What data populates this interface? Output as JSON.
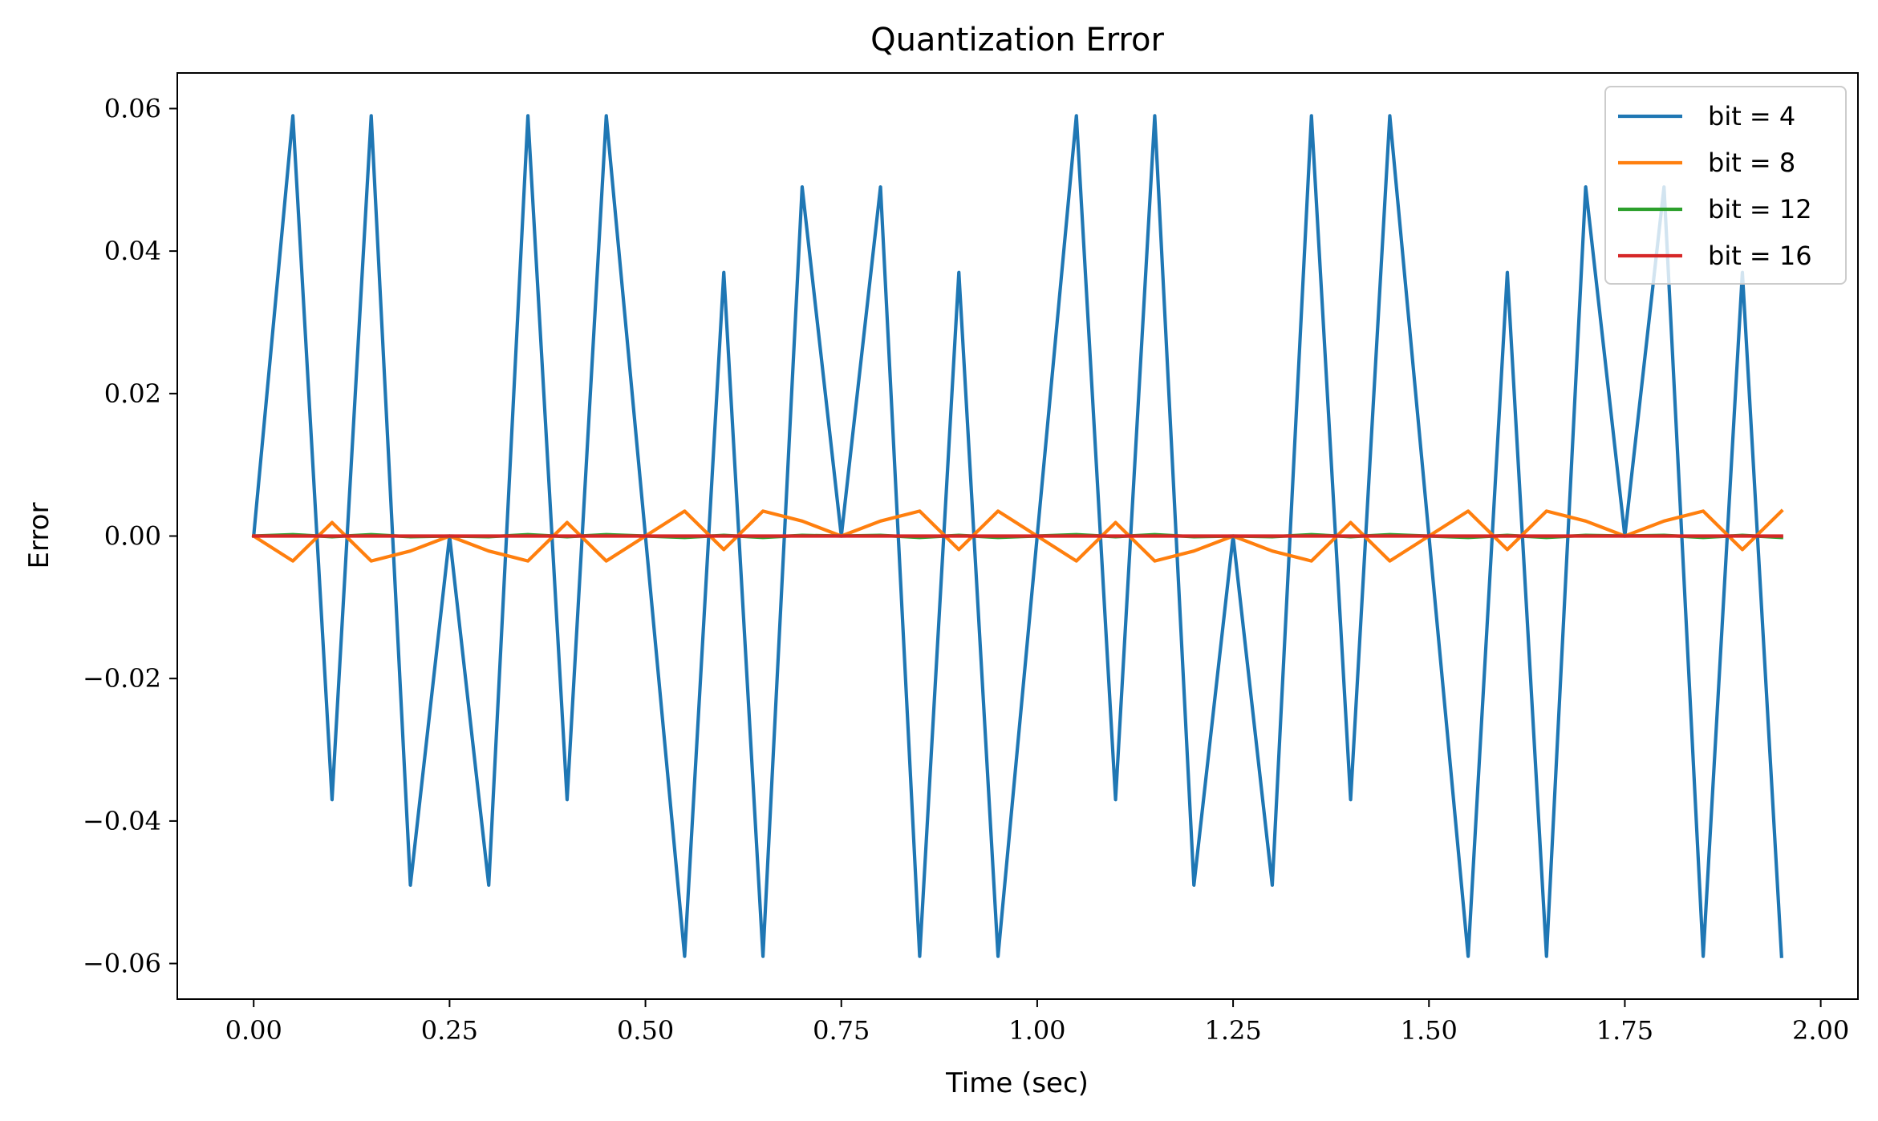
{
  "chart_data": {
    "type": "line",
    "title": "Quantization Error",
    "xlabel": "Time (sec)",
    "ylabel": "Error",
    "xlim": [
      -0.0975,
      2.0475
    ],
    "ylim": [
      -0.065,
      0.065
    ],
    "xticks": [
      0.0,
      0.25,
      0.5,
      0.75,
      1.0,
      1.25,
      1.5,
      1.75,
      2.0
    ],
    "xtick_labels": [
      "0.00",
      "0.25",
      "0.50",
      "0.75",
      "1.00",
      "1.25",
      "1.50",
      "1.75",
      "2.00"
    ],
    "yticks": [
      0.06,
      0.04,
      0.02,
      0.0,
      -0.02,
      -0.04,
      -0.06
    ],
    "ytick_labels": [
      "0.06",
      "0.04",
      "0.02",
      "0.00",
      "−0.02",
      "−0.04",
      "−0.06"
    ],
    "grid": false,
    "legend_position": "top-right",
    "x": [
      0.0,
      0.05,
      0.1,
      0.15,
      0.2,
      0.25,
      0.3,
      0.35,
      0.4,
      0.45,
      0.5,
      0.55,
      0.6,
      0.65,
      0.7,
      0.75,
      0.8,
      0.85,
      0.9,
      0.95,
      1.0,
      1.05,
      1.1,
      1.15,
      1.2,
      1.25,
      1.3,
      1.35,
      1.4,
      1.45,
      1.5,
      1.55,
      1.6,
      1.65,
      1.7,
      1.75,
      1.8,
      1.85,
      1.9,
      1.95
    ],
    "series": [
      {
        "name": "bit = 4",
        "color": "#1f77b4",
        "values": [
          0.0,
          0.059,
          -0.037,
          0.059,
          -0.049,
          0.0,
          -0.049,
          0.059,
          -0.037,
          0.059,
          0.0,
          -0.059,
          0.037,
          -0.059,
          0.049,
          0.0,
          0.049,
          -0.059,
          0.037,
          -0.059,
          0.0,
          0.059,
          -0.037,
          0.059,
          -0.049,
          0.0,
          -0.049,
          0.059,
          -0.037,
          0.059,
          0.0,
          -0.059,
          0.037,
          -0.059,
          0.049,
          0.0,
          0.049,
          -0.059,
          0.037,
          -0.059
        ]
      },
      {
        "name": "bit = 8",
        "color": "#ff7f0e",
        "values": [
          0.0,
          -0.0035,
          0.0019,
          -0.0035,
          -0.0021,
          0.0,
          -0.0021,
          -0.0035,
          0.0019,
          -0.0035,
          0.0,
          0.0035,
          -0.0019,
          0.0035,
          0.0021,
          0.0,
          0.0021,
          0.0035,
          -0.0019,
          0.0035,
          0.0,
          -0.0035,
          0.0019,
          -0.0035,
          -0.0021,
          0.0,
          -0.0021,
          -0.0035,
          0.0019,
          -0.0035,
          0.0,
          0.0035,
          -0.0019,
          0.0035,
          0.0021,
          0.0,
          0.0021,
          0.0035,
          -0.0019,
          0.0035
        ]
      },
      {
        "name": "bit = 12",
        "color": "#2ca02c",
        "values": [
          0.0,
          0.0002,
          -0.0001,
          0.0002,
          -0.0001,
          0.0,
          -0.0001,
          0.0002,
          -0.0001,
          0.0002,
          0.0,
          -0.0002,
          0.0001,
          -0.0002,
          0.0001,
          0.0,
          0.0001,
          -0.0002,
          0.0001,
          -0.0002,
          0.0,
          0.0002,
          -0.0001,
          0.0002,
          -0.0001,
          0.0,
          -0.0001,
          0.0002,
          -0.0001,
          0.0002,
          0.0,
          -0.0002,
          0.0001,
          -0.0002,
          0.0001,
          0.0,
          0.0001,
          -0.0002,
          0.0001,
          -0.0002
        ]
      },
      {
        "name": "bit = 16",
        "color": "#d62728",
        "values": [
          0.0,
          0.0,
          0.0,
          0.0,
          0.0,
          0.0,
          0.0,
          0.0,
          0.0,
          0.0,
          0.0,
          0.0,
          0.0,
          0.0,
          0.0,
          0.0,
          0.0,
          0.0,
          0.0,
          0.0,
          0.0,
          0.0,
          0.0,
          0.0,
          0.0,
          0.0,
          0.0,
          0.0,
          0.0,
          0.0,
          0.0,
          0.0,
          0.0,
          0.0,
          0.0,
          0.0,
          0.0,
          0.0,
          0.0,
          0.0
        ]
      }
    ]
  }
}
